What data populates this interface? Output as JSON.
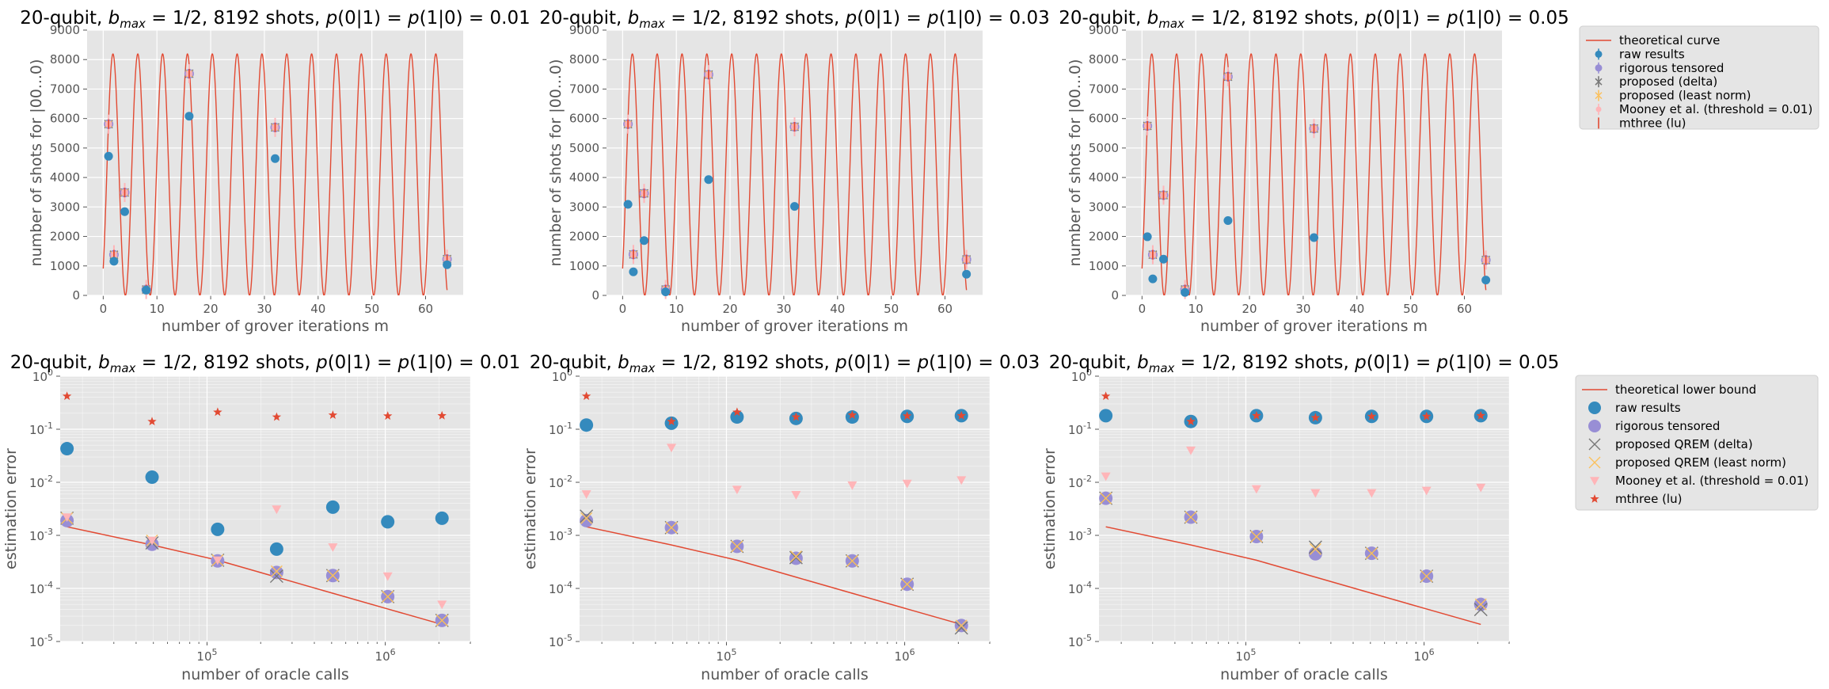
{
  "figure": {
    "background": "#ffffff",
    "panel_bg": "#e5e5e5",
    "grid_color": "#ffffff",
    "colors": {
      "theory": "#e24a33",
      "raw": "#348abd",
      "rigorous": "#988ed5",
      "delta": "#777777",
      "leastnorm": "#fbc15e",
      "mooney": "#ffb5b8",
      "mthree": "#e24a33"
    }
  },
  "chart_data": [
    {
      "id": "top-1",
      "type": "line+errorbar-scatter",
      "title": "20-qubit, b_max = 1/2, 8192 shots, p(0|1) = p(1|0) = 0.01",
      "title_parts": [
        "20-qubit, ",
        "b",
        "max",
        " = 1/2, 8192 shots, ",
        "p",
        "(0|1) = ",
        "p",
        "(1|0) = 0.01"
      ],
      "xlabel": "number of grover iterations m",
      "ylabel": "number of shots for |00...0)",
      "xlim": [
        -3,
        67
      ],
      "ylim": [
        0,
        9000
      ],
      "xticks": [
        0,
        10,
        20,
        30,
        40,
        50,
        60
      ],
      "yticks": [
        0,
        1000,
        2000,
        3000,
        4000,
        5000,
        6000,
        7000,
        8000,
        9000
      ],
      "curve": {
        "amplitude": 8192,
        "theta": 0.3398
      },
      "x": [
        1,
        2,
        4,
        8,
        16,
        32,
        64
      ],
      "raw": [
        4720,
        1160,
        2840,
        180,
        6080,
        4640,
        1040
      ],
      "corrected": [
        5810,
        1380,
        3490,
        200,
        7520,
        5700,
        1230
      ]
    },
    {
      "id": "top-2",
      "type": "line+errorbar-scatter",
      "title": "20-qubit, b_max = 1/2, 8192 shots, p(0|1) = p(1|0) = 0.03",
      "title_parts": [
        "20-qubit, ",
        "b",
        "max",
        " = 1/2, 8192 shots, ",
        "p",
        "(0|1) = ",
        "p",
        "(1|0) = 0.03"
      ],
      "xlabel": "number of grover iterations m",
      "ylabel": "number of shots for |00...0)",
      "xlim": [
        -3,
        67
      ],
      "ylim": [
        0,
        9000
      ],
      "xticks": [
        0,
        10,
        20,
        30,
        40,
        50,
        60
      ],
      "yticks": [
        0,
        1000,
        2000,
        3000,
        4000,
        5000,
        6000,
        7000,
        8000,
        9000
      ],
      "curve": {
        "amplitude": 8192,
        "theta": 0.3398
      },
      "x": [
        1,
        2,
        4,
        8,
        16,
        32,
        64
      ],
      "raw": [
        3090,
        800,
        1860,
        120,
        3930,
        3020,
        720
      ],
      "corrected": [
        5810,
        1390,
        3460,
        200,
        7490,
        5720,
        1220
      ]
    },
    {
      "id": "top-3",
      "type": "line+errorbar-scatter",
      "title": "20-qubit, b_max = 1/2, 8192 shots, p(0|1) = p(1|0) = 0.05",
      "title_parts": [
        "20-qubit, ",
        "b",
        "max",
        " = 1/2, 8192 shots, ",
        "p",
        "(0|1) = ",
        "p",
        "(1|0) = 0.05"
      ],
      "xlabel": "number of grover iterations m",
      "ylabel": "number of shots for |00...0)",
      "xlim": [
        -3,
        67
      ],
      "ylim": [
        0,
        9000
      ],
      "xticks": [
        0,
        10,
        20,
        30,
        40,
        50,
        60
      ],
      "yticks": [
        0,
        1000,
        2000,
        3000,
        4000,
        5000,
        6000,
        7000,
        8000,
        9000
      ],
      "curve": {
        "amplitude": 8192,
        "theta": 0.3398
      },
      "x": [
        1,
        2,
        4,
        8,
        16,
        32,
        64
      ],
      "raw": [
        1990,
        560,
        1230,
        100,
        2540,
        1960,
        520
      ],
      "corrected": [
        5750,
        1380,
        3400,
        200,
        7420,
        5660,
        1200
      ]
    },
    {
      "id": "bot-1",
      "type": "line+scatter-loglog",
      "title": "20-qubit, b_max = 1/2, 8192 shots, p(0|1) = p(1|0) = 0.01",
      "title_parts": [
        "20-qubit, ",
        "b",
        "max",
        " = 1/2, 8192 shots, ",
        "p",
        "(0|1) = ",
        "p",
        "(1|0) = 0.01"
      ],
      "xlabel": "number of oracle calls",
      "ylabel": "estimation error",
      "xlim": [
        15000,
        3000000
      ],
      "ylim": [
        1e-05,
        1
      ],
      "x": [
        16384,
        49152,
        114688,
        245760,
        507904,
        1032192,
        2080768
      ],
      "theory": [
        0.00145,
        0.00066,
        0.00034,
        0.000163,
        8.1e-05,
        4.1e-05,
        2.1e-05
      ],
      "raw": [
        0.043,
        0.0125,
        0.0013,
        0.00055,
        0.0034,
        0.0018,
        0.0021
      ],
      "rigorous": [
        0.0019,
        0.00068,
        0.00033,
        0.0002,
        0.000175,
        7e-05,
        2.5e-05
      ],
      "delta": [
        0.0021,
        0.00072,
        0.00034,
        0.00017,
        0.000175,
        7e-05,
        2.5e-05
      ],
      "leastnorm": [
        0.0021,
        0.0008,
        0.00034,
        0.00021,
        0.000175,
        7e-05,
        2.5e-05
      ],
      "mooney": [
        0.0022,
        0.0008,
        0.00034,
        0.0031,
        0.0006,
        0.00017,
        5e-05
      ],
      "mthree": [
        0.42,
        0.14,
        0.21,
        0.17,
        0.185,
        0.178,
        0.18
      ]
    },
    {
      "id": "bot-2",
      "type": "line+scatter-loglog",
      "title": "20-qubit, b_max = 1/2, 8192 shots, p(0|1) = p(1|0) = 0.03",
      "title_parts": [
        "20-qubit, ",
        "b",
        "max",
        " = 1/2, 8192 shots, ",
        "p",
        "(0|1) = ",
        "p",
        "(1|0) = 0.03"
      ],
      "xlabel": "number of oracle calls",
      "ylabel": "estimation error",
      "xlim": [
        15000,
        3000000
      ],
      "ylim": [
        1e-05,
        1
      ],
      "x": [
        16384,
        49152,
        114688,
        245760,
        507904,
        1032192,
        2080768
      ],
      "theory": [
        0.00145,
        0.00066,
        0.00034,
        0.000163,
        8.1e-05,
        4.1e-05,
        2.1e-05
      ],
      "raw": [
        0.12,
        0.13,
        0.17,
        0.16,
        0.17,
        0.175,
        0.18
      ],
      "rigorous": [
        0.0019,
        0.0014,
        0.00062,
        0.00037,
        0.00033,
        0.00012,
        2e-05
      ],
      "delta": [
        0.0023,
        0.0014,
        0.00062,
        0.00038,
        0.00033,
        0.00012,
        1.8e-05
      ],
      "leastnorm": [
        0.0021,
        0.0014,
        0.00062,
        0.0004,
        0.00033,
        0.00012,
        2e-05
      ],
      "mooney": [
        0.006,
        0.045,
        0.0073,
        0.0058,
        0.0088,
        0.0095,
        0.011
      ],
      "mthree": [
        0.42,
        0.14,
        0.21,
        0.17,
        0.185,
        0.178,
        0.18
      ]
    },
    {
      "id": "bot-3",
      "type": "line+scatter-loglog",
      "title": "20-qubit, b_max = 1/2, 8192 shots, p(0|1) = p(1|0) = 0.05",
      "title_parts": [
        "20-qubit, ",
        "b",
        "max",
        " = 1/2, 8192 shots, ",
        "p",
        "(0|1) = ",
        "p",
        "(1|0) = 0.05"
      ],
      "xlabel": "number of oracle calls",
      "ylabel": "estimation error",
      "xlim": [
        15000,
        3000000
      ],
      "ylim": [
        1e-05,
        1
      ],
      "x": [
        16384,
        49152,
        114688,
        245760,
        507904,
        1032192,
        2080768
      ],
      "theory": [
        0.00145,
        0.00066,
        0.00034,
        0.000163,
        8.1e-05,
        4.1e-05,
        2.1e-05
      ],
      "raw": [
        0.18,
        0.14,
        0.18,
        0.165,
        0.175,
        0.175,
        0.18
      ],
      "rigorous": [
        0.005,
        0.0022,
        0.00095,
        0.00045,
        0.00046,
        0.00017,
        5e-05
      ],
      "delta": [
        0.005,
        0.0022,
        0.00095,
        0.0006,
        0.00046,
        0.00017,
        4e-05
      ],
      "leastnorm": [
        0.005,
        0.0022,
        0.00095,
        0.00055,
        0.00046,
        0.00017,
        5e-05
      ],
      "mooney": [
        0.013,
        0.04,
        0.0075,
        0.0063,
        0.0063,
        0.007,
        0.008
      ],
      "mthree": [
        0.42,
        0.14,
        0.18,
        0.165,
        0.175,
        0.175,
        0.18
      ]
    }
  ],
  "legend_top": {
    "position": "right",
    "entries": [
      "theoretical curve",
      "raw results",
      "rigorous tensored",
      "proposed (delta)",
      "proposed (least norm)",
      "Mooney et al. (threshold = 0.01)",
      "mthree (lu)"
    ]
  },
  "legend_bottom": {
    "position": "right",
    "entries": [
      "theoretical lower bound",
      "raw results",
      "rigorous tensored",
      "proposed QREM (delta)",
      "proposed QREM (least norm)",
      "Mooney et al. (threshold = 0.01)",
      "mthree (lu)"
    ]
  }
}
